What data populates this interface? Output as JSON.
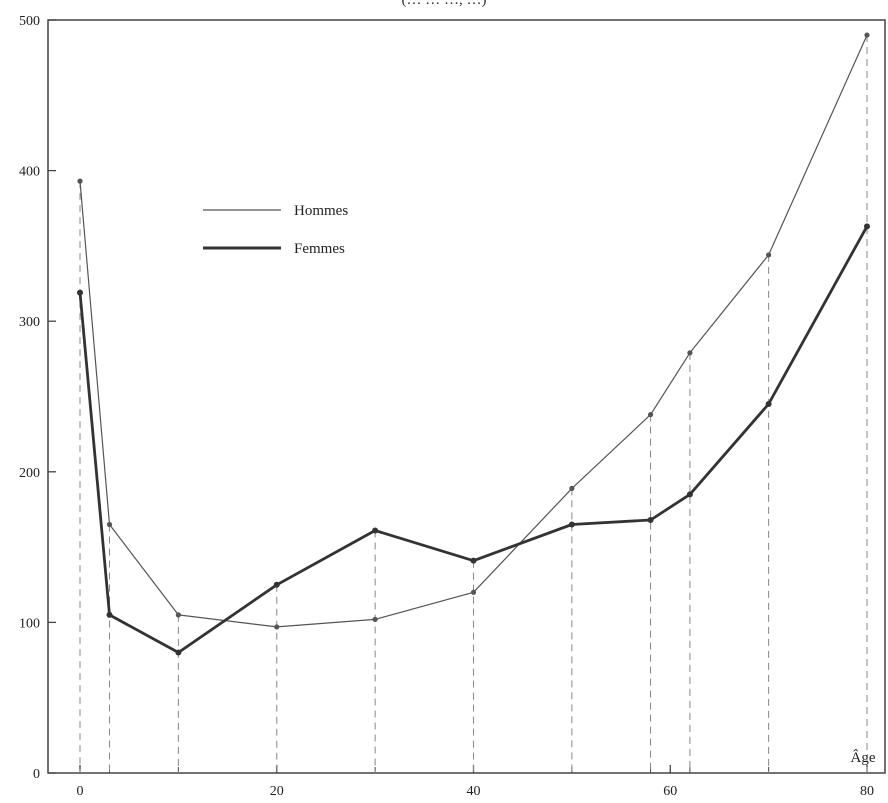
{
  "chart_data": {
    "type": "line",
    "title": "(… … …, …)",
    "xlabel": "Âge",
    "ylabel": "",
    "xlim": [
      0,
      80
    ],
    "ylim": [
      0,
      500
    ],
    "x": [
      0,
      3,
      10,
      20,
      30,
      40,
      50,
      58,
      62,
      70,
      80
    ],
    "x_ticks": [
      0,
      20,
      40,
      60,
      80
    ],
    "y_ticks": [
      0,
      100,
      200,
      300,
      400,
      500
    ],
    "x_tick_labels": [
      "0",
      "20",
      "40",
      "60",
      "80"
    ],
    "y_tick_labels": [
      "0",
      "100",
      "200",
      "300",
      "400",
      "500"
    ],
    "series": [
      {
        "name": "Hommes",
        "style": "thin",
        "color": "#555555",
        "values": [
          393,
          165,
          105,
          97,
          102,
          120,
          189,
          238,
          279,
          344,
          490
        ]
      },
      {
        "name": "Femmes",
        "style": "thick",
        "color": "#333333",
        "values": [
          319,
          105,
          80,
          125,
          161,
          141,
          165,
          168,
          185,
          245,
          363
        ]
      }
    ],
    "grid": false,
    "legend_position": "upper-left"
  }
}
